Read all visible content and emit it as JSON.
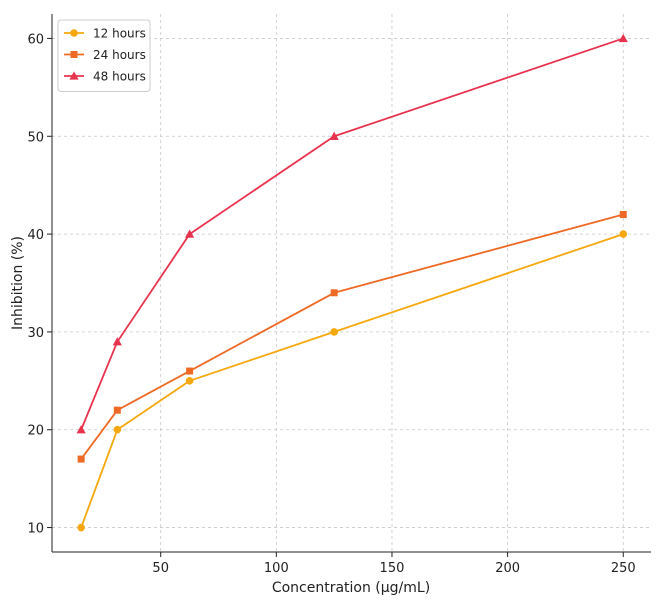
{
  "chart_data": {
    "type": "line",
    "title": "",
    "xlabel": "Concentration (µg/mL)",
    "ylabel": "Inhibition (%)",
    "xlim": [
      3,
      262
    ],
    "ylim": [
      7.5,
      62.5
    ],
    "xticks": [
      50,
      100,
      150,
      200,
      250
    ],
    "yticks": [
      10,
      20,
      30,
      40,
      50,
      60
    ],
    "grid": true,
    "legend_position": "top-left",
    "x": [
      15.6,
      31.25,
      62.5,
      125,
      250
    ],
    "series": [
      {
        "name": "12 hours",
        "values": [
          10,
          20,
          25,
          30,
          40
        ],
        "color": "#F5A80E",
        "marker": "circle"
      },
      {
        "name": "24 hours",
        "values": [
          17,
          22,
          26,
          34,
          42
        ],
        "color": "#EE6A24",
        "marker": "square"
      },
      {
        "name": "48 hours",
        "values": [
          20,
          29,
          40,
          50,
          60
        ],
        "color": "#E8334F",
        "marker": "triangle"
      }
    ]
  }
}
